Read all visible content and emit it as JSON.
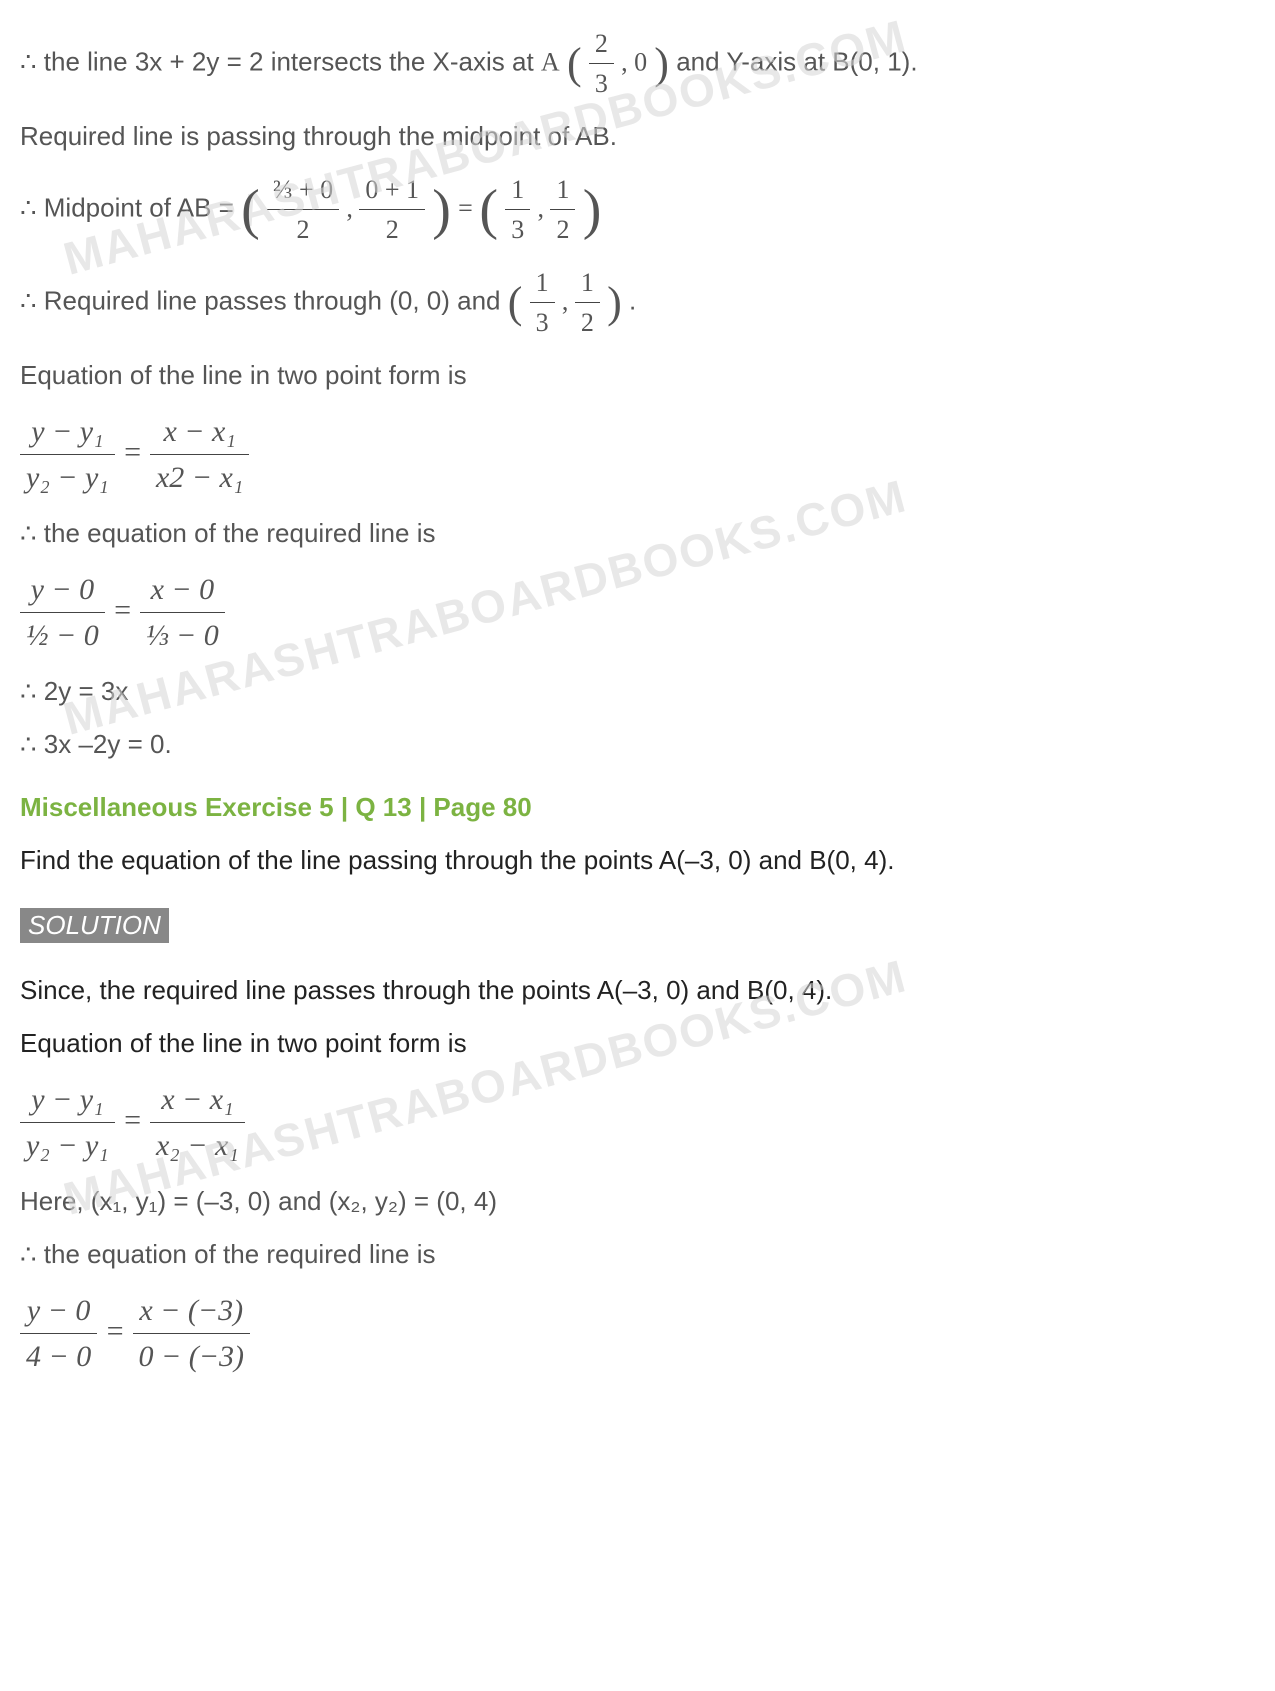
{
  "colors": {
    "text": "#555555",
    "heading": "#7cb342",
    "solution_bg": "#888888",
    "solution_fg": "#ffffff",
    "watermark": "#d6d6d6",
    "rule": "#444444"
  },
  "watermark_text": "MAHARASHTRABOARDBOOKS.COM",
  "lines": {
    "l1_pre": "∴ the line 3x + 2y = 2 intersects the X-axis at ",
    "l1_A": "A",
    "l1_frac_num": "2",
    "l1_frac_den": "3",
    "l1_zero": ", 0",
    "l1_post": " and Y-axis at B(0, 1).",
    "l2": "Required line is passing through the midpoint of AB.",
    "l3_pre": "∴ Midpoint of AB = ",
    "l3_f1_num": "⅔ + 0",
    "l3_f1_den": "2",
    "l3_comma": " , ",
    "l3_f2_num": "0 + 1",
    "l3_f2_den": "2",
    "l3_eq": " = ",
    "l3_r1_num": "1",
    "l3_r1_den": "3",
    "l3_r2_num": "1",
    "l3_r2_den": "2",
    "l4_pre": "∴ Required line passes through (0, 0) and ",
    "l4_f1_num": "1",
    "l4_f1_den": "3",
    "l4_f2_num": "1",
    "l4_f2_den": "2",
    "l4_post": " .",
    "l5": "Equation of the line in two point form is",
    "tpf_l_num": "y − y₁",
    "tpf_l_den": "y₂ − y₁",
    "tpf_eq": " = ",
    "tpf_r_num": "x − x₁",
    "tpf_r_den_a": "x2 − x₁",
    "l6": "∴ the equation of the required line is",
    "eq2_l_num": "y − 0",
    "eq2_l_den": "½ − 0",
    "eq2_r_num": "x − 0",
    "eq2_r_den": "⅓ − 0",
    "l7": "∴ 2y = 3x",
    "l8": "∴ 3x –2y = 0.",
    "heading": "Miscellaneous Exercise 5 | Q 13 | Page 80",
    "problem": "Find the equation of the line passing through the points A(–3, 0) and B(0, 4).",
    "solution_label": "SOLUTION",
    "s1": "Since, the required line passes through the points A(–3, 0) and B(0, 4).",
    "s2": "Equation of the line in two point form is",
    "tpf2_r_den": "x₂ − x₁",
    "s3": "Here, (x₁, y₁) = (–3, 0) and (x₂, y₂) = (0, 4)",
    "s4": "∴ the equation of the required line is",
    "eq3_l_num": "y − 0",
    "eq3_l_den": "4 − 0",
    "eq3_r_num": "x − (−3)",
    "eq3_r_den": "0 − (−3)"
  }
}
